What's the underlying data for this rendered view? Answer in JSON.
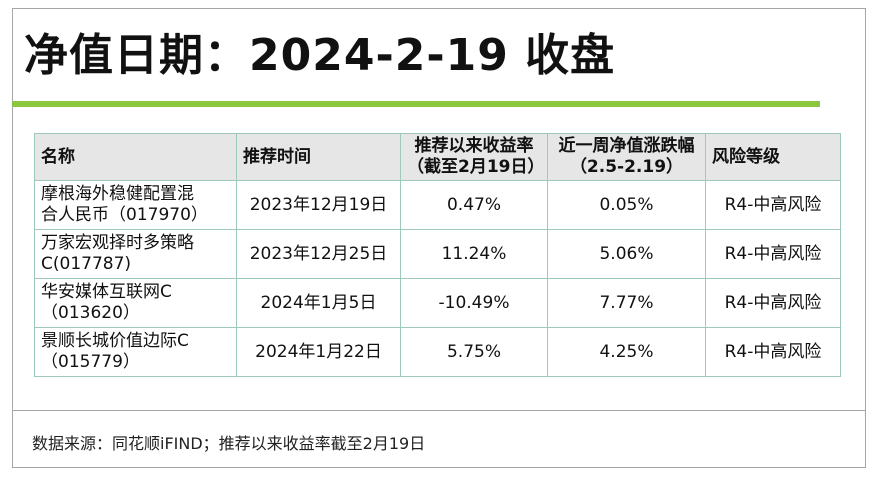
{
  "title": "净值日期：2024-2-19 收盘",
  "table": {
    "headers": {
      "name": "名称",
      "rec_time": "推荐时间",
      "return_line1": "推荐以来收益率",
      "return_line2": "（截至2月19日）",
      "week_line1": "近一周净值涨跌幅",
      "week_line2": "（2.5-2.19）",
      "risk": "风险等级"
    },
    "rows": [
      {
        "name_line1": "摩根海外稳健配置混",
        "name_line2": "合人民币（017970）",
        "rec_time": "2023年12月19日",
        "return": "0.47%",
        "week": "0.05%",
        "risk": "R4-中高风险"
      },
      {
        "name_line1": "万家宏观择时多策略",
        "name_line2": "C(017787)",
        "rec_time": "2023年12月25日",
        "return": "11.24%",
        "week": "5.06%",
        "risk": "R4-中高风险"
      },
      {
        "name_line1": "华安媒体互联网C",
        "name_line2": "（013620）",
        "rec_time": "2024年1月5日",
        "return": "-10.49%",
        "week": "7.77%",
        "risk": "R4-中高风险"
      },
      {
        "name_line1": "景顺长城价值边际C",
        "name_line2": "（015779）",
        "rec_time": "2024年1月22日",
        "return": "5.75%",
        "week": "4.25%",
        "risk": "R4-中高风险"
      }
    ]
  },
  "footer": "数据来源：同花顺iFIND；推荐以来收益率截至2月19日",
  "colors": {
    "accent": "#8dc63f",
    "header_bg": "#e6e6e6",
    "border": "#9fc9b8"
  }
}
